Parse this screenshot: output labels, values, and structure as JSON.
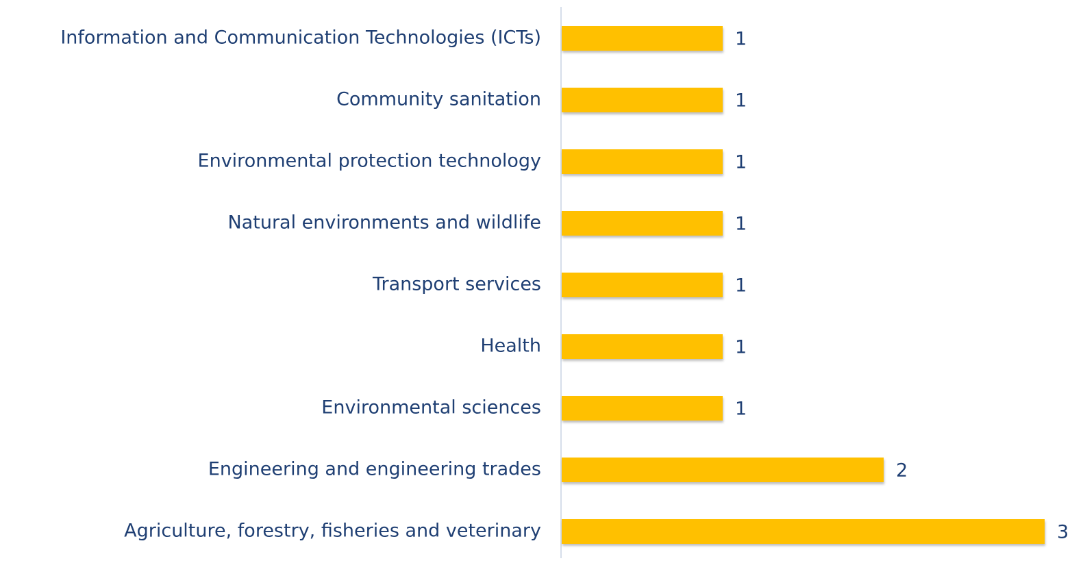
{
  "chart_data": {
    "type": "barh",
    "categories": [
      "Information and Communication Technologies (ICTs)",
      "Community sanitation",
      "Environmental protection technology",
      "Natural environments and wildlife",
      "Transport services",
      "Health",
      "Environmental sciences",
      "Engineering and engineering trades",
      "Agriculture, forestry, fisheries and veterinary"
    ],
    "values": [
      1,
      1,
      1,
      1,
      1,
      1,
      1,
      2,
      3
    ],
    "color": "#ffc000",
    "xlim": [
      0,
      3
    ]
  }
}
